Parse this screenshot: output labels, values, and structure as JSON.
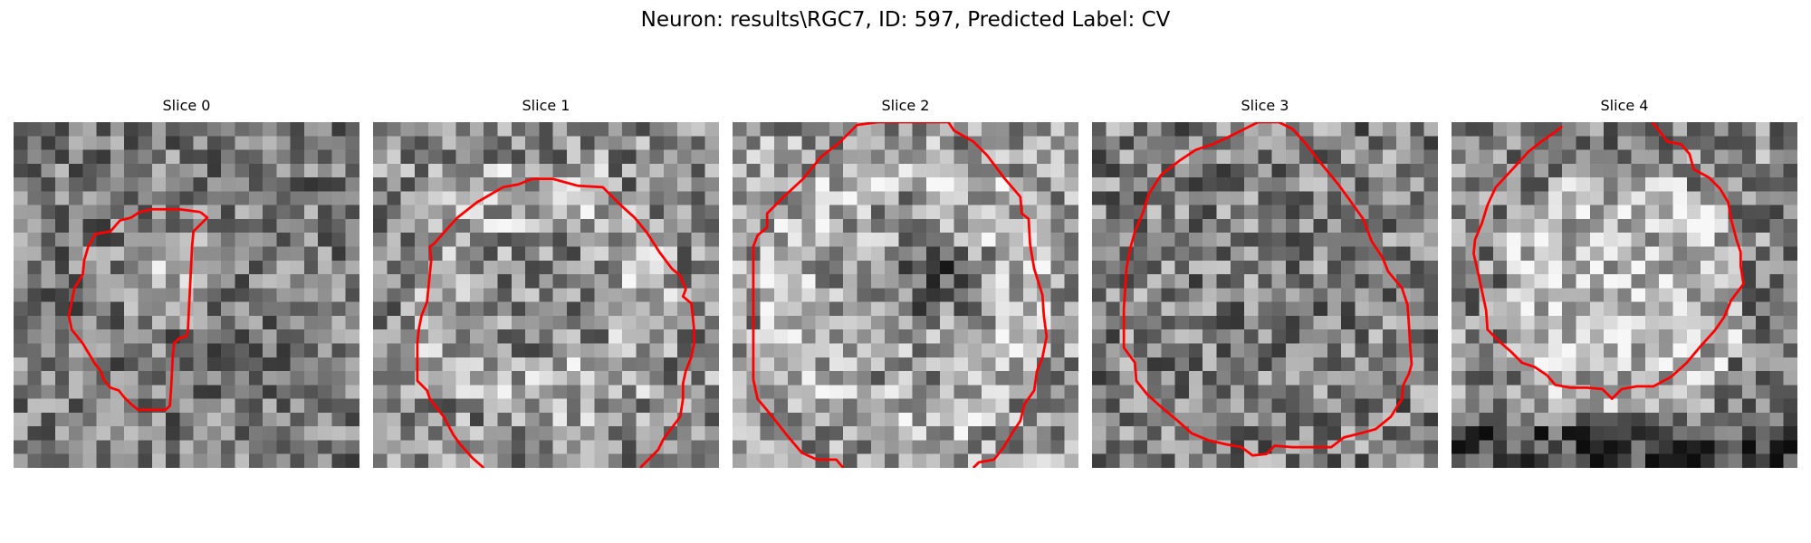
{
  "figure": {
    "title": "Neuron: results\\RGC7, ID: 597, Predicted Label: CV",
    "contour_color": "#ff0000",
    "colormap": "grayscale",
    "grid_size": 25
  },
  "panels": [
    {
      "title": "Slice 0",
      "seed": 11,
      "contrast": 0.55,
      "mean": 0.48,
      "center_pattern": "bright_blob"
    },
    {
      "title": "Slice 1",
      "seed": 23,
      "contrast": 0.6,
      "mean": 0.55,
      "center_pattern": "ring"
    },
    {
      "title": "Slice 2",
      "seed": 37,
      "contrast": 0.6,
      "mean": 0.6,
      "center_pattern": "ring_dark_center"
    },
    {
      "title": "Slice 3",
      "seed": 41,
      "contrast": 0.6,
      "mean": 0.5,
      "center_pattern": "textured"
    },
    {
      "title": "Slice 4",
      "seed": 53,
      "contrast": 0.6,
      "mean": 0.58,
      "center_pattern": "bright_disc"
    }
  ]
}
